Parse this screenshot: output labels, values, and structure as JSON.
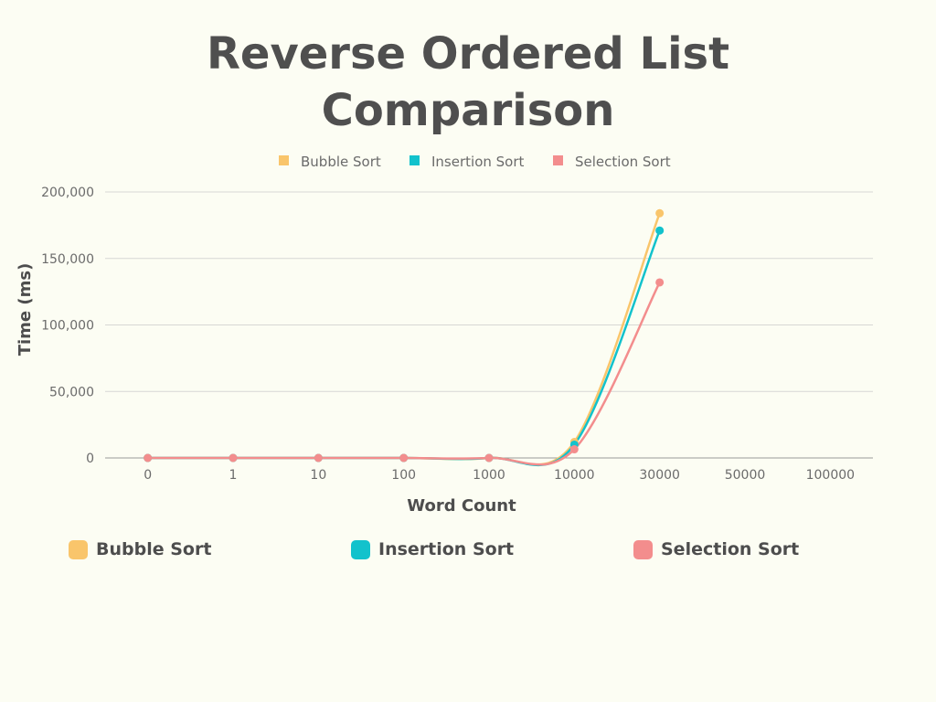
{
  "chart_data": {
    "type": "line",
    "title_lines": [
      "Reverse Ordered List",
      "Comparison"
    ],
    "xlabel": "Word Count",
    "ylabel": "Time (ms)",
    "categories": [
      "0",
      "1",
      "10",
      "100",
      "1000",
      "10000",
      "30000",
      "50000",
      "100000"
    ],
    "ylim": [
      0,
      200000
    ],
    "yticks": [
      "0",
      "50,000",
      "100,000",
      "150,000",
      "200,000"
    ],
    "grid": true,
    "legend_top_placement": "top-center",
    "legend_bottom_placement": "bottom",
    "series": [
      {
        "name": "Bubble Sort",
        "color": "#f9c56b",
        "values": [
          0,
          0,
          0,
          0,
          0,
          12000,
          184000,
          null,
          null
        ]
      },
      {
        "name": "Insertion Sort",
        "color": "#12c2cc",
        "values": [
          0,
          0,
          0,
          0,
          0,
          10000,
          171000,
          null,
          null
        ]
      },
      {
        "name": "Selection Sort",
        "color": "#f38d8d",
        "values": [
          0,
          0,
          0,
          0,
          0,
          6500,
          132000,
          null,
          null
        ]
      }
    ]
  }
}
